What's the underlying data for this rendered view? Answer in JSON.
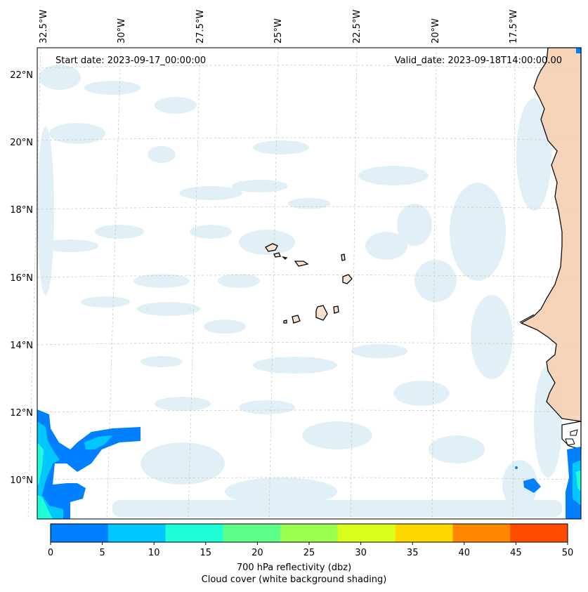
{
  "header": {
    "start_date": "Start date: 2023-09-17_00:00:00",
    "valid_date": "Valid_date: 2023-09-18T14:00:00.00"
  },
  "map": {
    "longitude_labels": [
      "32.5°W",
      "30°W",
      "27.5°W",
      "25°W",
      "22.5°W",
      "20°W",
      "17.5°W"
    ],
    "latitude_labels": [
      "22°N",
      "20°N",
      "18°N",
      "16°N",
      "14°N",
      "12°N",
      "10°N"
    ],
    "gridlines": "dashed",
    "background_shading": "cloud cover"
  },
  "colorbar": {
    "ticks": [
      "0",
      "5",
      "10",
      "15",
      "20",
      "25",
      "30",
      "35",
      "40",
      "45",
      "50"
    ],
    "colors": [
      "#0080ff",
      "#00c8ff",
      "#1effd8",
      "#5cff8a",
      "#9bff50",
      "#d8ff1e",
      "#ffd800",
      "#ff8800",
      "#ff4c00"
    ],
    "label": "700 hPa reflectivity (dbz)",
    "sublabel": "Cloud cover (white background shading)"
  },
  "colors": {
    "cloud": "#d6ebf3",
    "land_tint": "#f6d2b6",
    "coast": "#000000",
    "grid": "#c8c8c8"
  }
}
